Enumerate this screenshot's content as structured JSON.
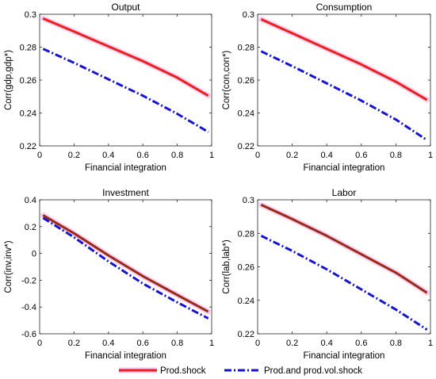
{
  "chart_data": [
    {
      "type": "line",
      "title": "Output",
      "xlabel": "Financial integration",
      "ylabel": "Corr(gdp,gdp*)",
      "xlim": [
        0,
        1
      ],
      "ylim": [
        0.22,
        0.3
      ],
      "xticks": [
        0,
        0.2,
        0.4,
        0.6,
        0.8,
        1
      ],
      "xtick_labels": [
        "0",
        "0.2",
        "0.4",
        "0.6",
        "0.8",
        "1"
      ],
      "yticks": [
        0.22,
        0.24,
        0.26,
        0.28,
        0.3
      ],
      "ytick_labels": [
        "0.22",
        "0.24",
        "0.26",
        "0.28",
        "0.3"
      ],
      "x": [
        0.02,
        0.2,
        0.4,
        0.6,
        0.8,
        0.98
      ],
      "series": [
        {
          "name": "Prod.shock",
          "color": "#e8211b",
          "style": "solid",
          "values": [
            0.2975,
            0.2895,
            0.2805,
            0.2715,
            0.2615,
            0.2505
          ]
        },
        {
          "name": "Prod.and prod.vol.shock",
          "color": "#1515d0",
          "style": "dashdot",
          "values": [
            0.279,
            0.2705,
            0.2605,
            0.2505,
            0.2395,
            0.2285
          ]
        }
      ]
    },
    {
      "type": "line",
      "title": "Consumption",
      "xlabel": "Financial integration",
      "ylabel": "Corr(con,con*)",
      "xlim": [
        0,
        1
      ],
      "ylim": [
        0.22,
        0.3
      ],
      "xticks": [
        0,
        0.2,
        0.4,
        0.6,
        0.8,
        1
      ],
      "xtick_labels": [
        "0",
        "0.2",
        "0.4",
        "0.6",
        "0.8",
        "1"
      ],
      "yticks": [
        0.22,
        0.24,
        0.26,
        0.28,
        0.3
      ],
      "ytick_labels": [
        "0.22",
        "0.24",
        "0.26",
        "0.28",
        "0.3"
      ],
      "x": [
        0.02,
        0.2,
        0.4,
        0.6,
        0.8,
        0.98
      ],
      "series": [
        {
          "name": "Prod.shock",
          "color": "#e8211b",
          "style": "solid",
          "values": [
            0.297,
            0.2885,
            0.279,
            0.2695,
            0.259,
            0.248
          ]
        },
        {
          "name": "Prod.and prod.vol.shock",
          "color": "#1515d0",
          "style": "dashdot",
          "values": [
            0.2775,
            0.2685,
            0.258,
            0.2475,
            0.236,
            0.2235
          ]
        }
      ]
    },
    {
      "type": "line",
      "title": "Investment",
      "xlabel": "Financial integration",
      "ylabel": "Corr(inv,inv*)",
      "xlim": [
        0,
        1
      ],
      "ylim": [
        -0.6,
        0.4
      ],
      "xticks": [
        0,
        0.2,
        0.4,
        0.6,
        0.8,
        1
      ],
      "xtick_labels": [
        "0",
        "0.2",
        "0.4",
        "0.6",
        "0.8",
        "1"
      ],
      "yticks": [
        -0.6,
        -0.4,
        -0.2,
        0,
        0.2,
        0.4
      ],
      "ytick_labels": [
        "-0.6",
        "-0.4",
        "-0.2",
        "0",
        "0.2",
        "0.4"
      ],
      "x": [
        0.02,
        0.2,
        0.4,
        0.6,
        0.8,
        0.98
      ],
      "series": [
        {
          "name": "Prod.shock",
          "color": "#9b2a14",
          "style": "solid",
          "values": [
            0.285,
            0.15,
            -0.015,
            -0.17,
            -0.31,
            -0.435
          ]
        },
        {
          "name": "Prod.and prod.vol.shock",
          "color": "#1515d0",
          "style": "dashdot",
          "values": [
            0.265,
            0.12,
            -0.06,
            -0.225,
            -0.365,
            -0.485
          ]
        }
      ]
    },
    {
      "type": "line",
      "title": "Labor",
      "xlabel": "Financial integration",
      "ylabel": "Corr(lab,lab*)",
      "xlim": [
        0,
        1
      ],
      "ylim": [
        0.22,
        0.3
      ],
      "xticks": [
        0,
        0.2,
        0.4,
        0.6,
        0.8,
        1
      ],
      "xtick_labels": [
        "0",
        "0.2",
        "0.4",
        "0.6",
        "0.8",
        "1"
      ],
      "yticks": [
        0.22,
        0.24,
        0.26,
        0.28,
        0.3
      ],
      "ytick_labels": [
        "0.22",
        "0.24",
        "0.26",
        "0.28",
        "0.3"
      ],
      "x": [
        0.02,
        0.2,
        0.4,
        0.6,
        0.8,
        0.98
      ],
      "series": [
        {
          "name": "Prod.shock",
          "color": "#9b2a14",
          "style": "solid",
          "values": [
            0.297,
            0.2885,
            0.2785,
            0.2675,
            0.2565,
            0.2445
          ]
        },
        {
          "name": "Prod.and prod.vol.shock",
          "color": "#1515d0",
          "style": "dashdot",
          "values": [
            0.2785,
            0.2695,
            0.2585,
            0.2465,
            0.2345,
            0.2225
          ]
        }
      ]
    }
  ],
  "legend": {
    "placement": "bottom-center",
    "entries": [
      {
        "label": "Prod.shock",
        "color": "#e8211b",
        "style": "solid"
      },
      {
        "label": "Prod.and prod.vol.shock",
        "color": "#1515d0",
        "style": "dashdot"
      }
    ]
  }
}
